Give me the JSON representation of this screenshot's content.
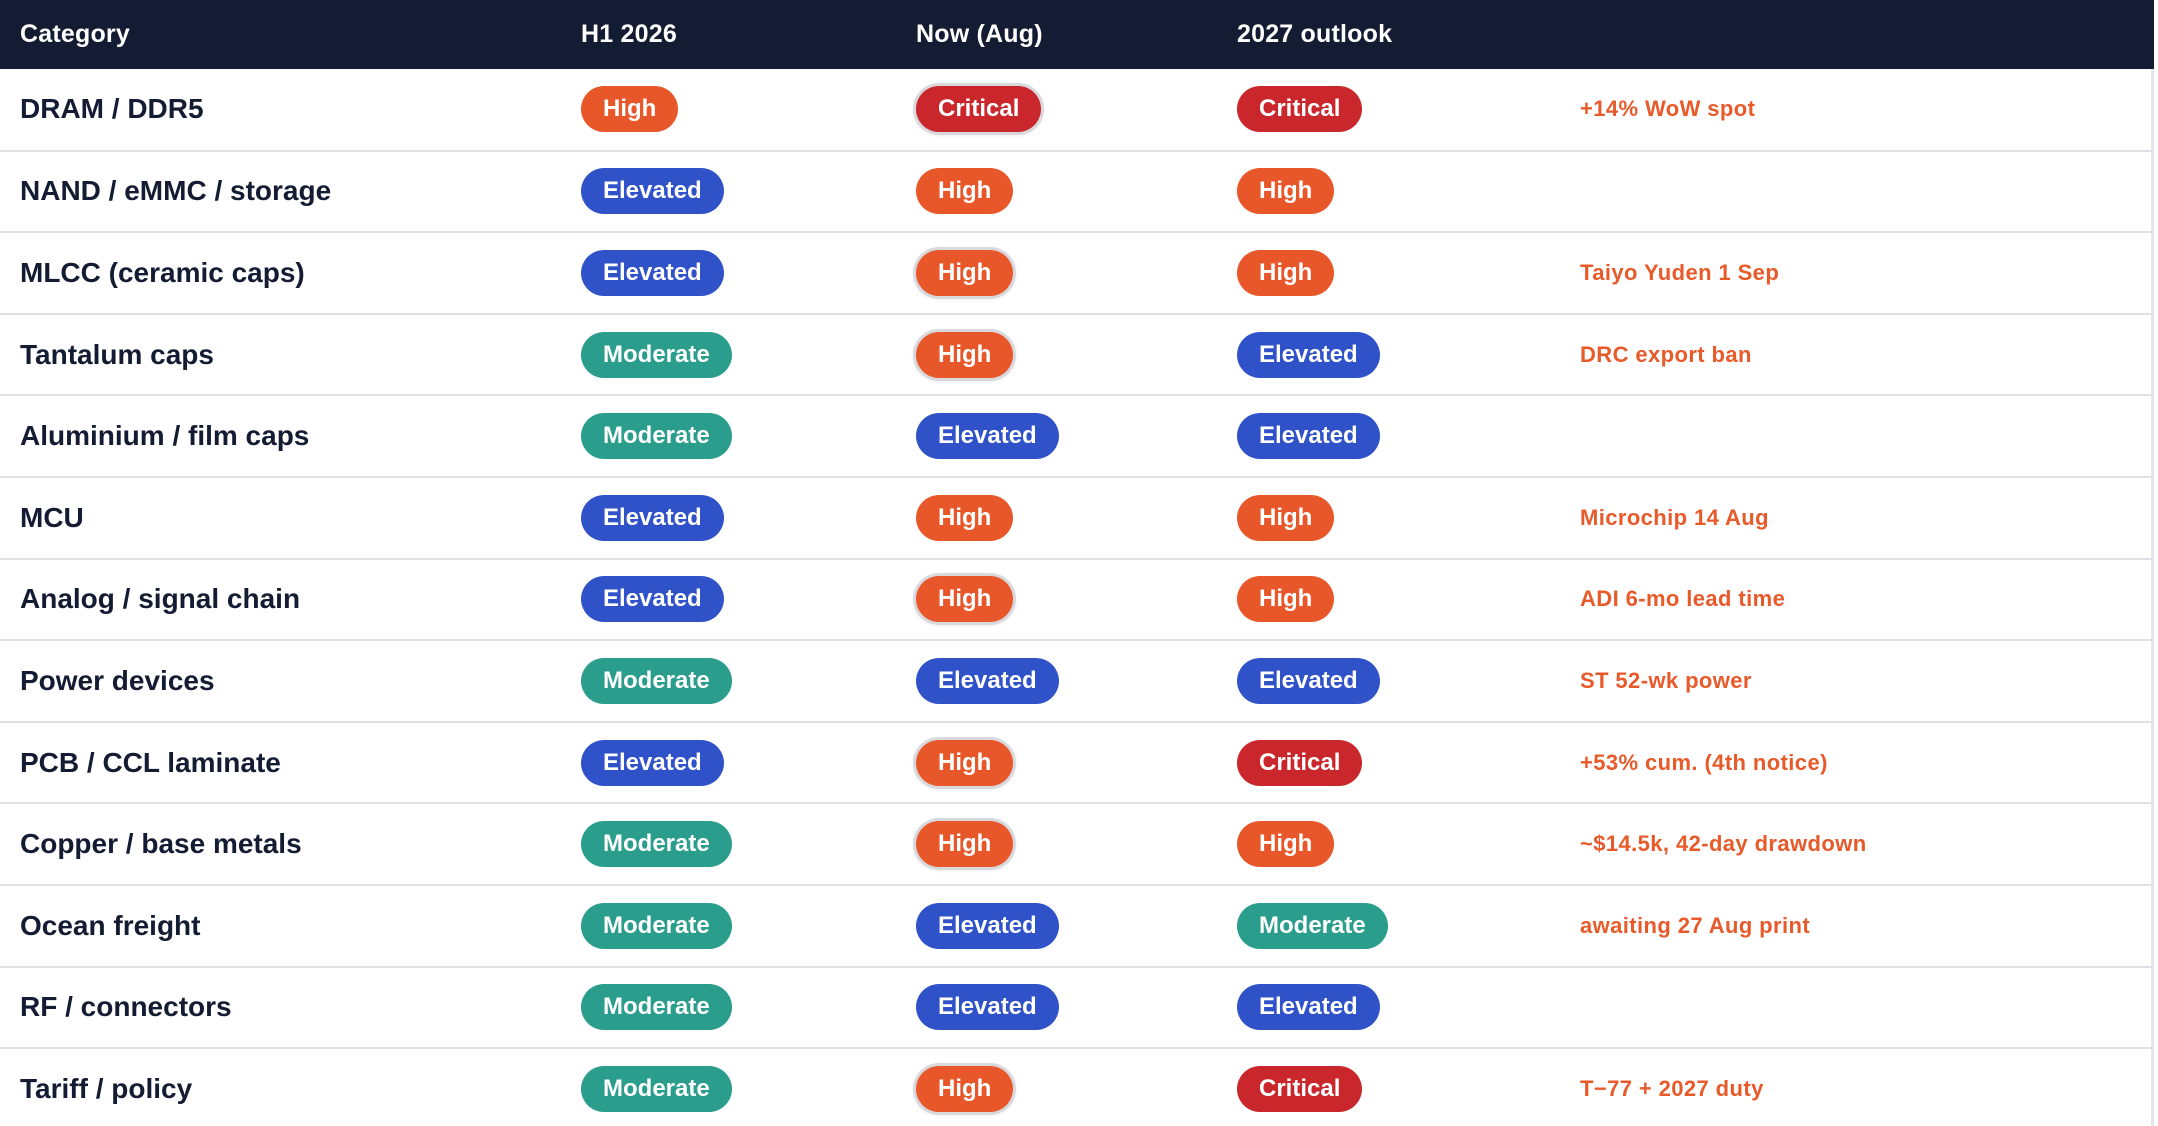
{
  "header": {
    "category": "Category",
    "h1_2026": "H1 2026",
    "now": "Now (Aug)",
    "outlook_2027": "2027 outlook",
    "note": ""
  },
  "colors": {
    "header_bg": "#141c33",
    "High": "#e8572a",
    "Critical": "#c9272b",
    "Elevated": "#2f52c9",
    "Moderate": "#2a9d8c",
    "note_text": "#e85a2a"
  },
  "rows": [
    {
      "category": "DRAM / DDR5",
      "h1_2026": "High",
      "now": "Critical",
      "now_highlight": true,
      "outlook_2027": "Critical",
      "note": "+14% WoW spot"
    },
    {
      "category": "NAND / eMMC / storage",
      "h1_2026": "Elevated",
      "now": "High",
      "now_highlight": false,
      "outlook_2027": "High",
      "note": ""
    },
    {
      "category": "MLCC (ceramic caps)",
      "h1_2026": "Elevated",
      "now": "High",
      "now_highlight": true,
      "outlook_2027": "High",
      "note": "Taiyo Yuden 1 Sep"
    },
    {
      "category": "Tantalum caps",
      "h1_2026": "Moderate",
      "now": "High",
      "now_highlight": true,
      "outlook_2027": "Elevated",
      "note": "DRC export ban"
    },
    {
      "category": "Aluminium / film caps",
      "h1_2026": "Moderate",
      "now": "Elevated",
      "now_highlight": false,
      "outlook_2027": "Elevated",
      "note": ""
    },
    {
      "category": "MCU",
      "h1_2026": "Elevated",
      "now": "High",
      "now_highlight": false,
      "outlook_2027": "High",
      "note": "Microchip 14 Aug"
    },
    {
      "category": "Analog / signal chain",
      "h1_2026": "Elevated",
      "now": "High",
      "now_highlight": true,
      "outlook_2027": "High",
      "note": "ADI 6-mo lead time"
    },
    {
      "category": "Power devices",
      "h1_2026": "Moderate",
      "now": "Elevated",
      "now_highlight": false,
      "outlook_2027": "Elevated",
      "note": "ST 52-wk power"
    },
    {
      "category": "PCB / CCL laminate",
      "h1_2026": "Elevated",
      "now": "High",
      "now_highlight": true,
      "outlook_2027": "Critical",
      "note": "+53% cum. (4th notice)"
    },
    {
      "category": "Copper / base metals",
      "h1_2026": "Moderate",
      "now": "High",
      "now_highlight": true,
      "outlook_2027": "High",
      "note": "~$14.5k, 42-day drawdown"
    },
    {
      "category": "Ocean freight",
      "h1_2026": "Moderate",
      "now": "Elevated",
      "now_highlight": false,
      "outlook_2027": "Moderate",
      "note": "awaiting 27 Aug print"
    },
    {
      "category": "RF / connectors",
      "h1_2026": "Moderate",
      "now": "Elevated",
      "now_highlight": false,
      "outlook_2027": "Elevated",
      "note": ""
    },
    {
      "category": "Tariff / policy",
      "h1_2026": "Moderate",
      "now": "High",
      "now_highlight": true,
      "outlook_2027": "Critical",
      "note": "T−77 + 2027 duty"
    }
  ]
}
